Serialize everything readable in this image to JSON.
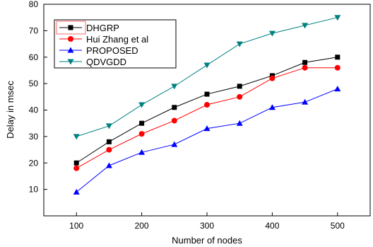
{
  "chart_data": {
    "type": "line",
    "xlabel": "Number of nodes",
    "ylabel": "Delay in msec",
    "xlim": [
      50,
      550
    ],
    "ylim": [
      0,
      80
    ],
    "x": [
      100,
      150,
      200,
      250,
      300,
      350,
      400,
      450,
      500
    ],
    "x_ticks": [
      100,
      200,
      300,
      400,
      500
    ],
    "x_tick_labels": [
      "100",
      "200",
      "300",
      "400",
      "500"
    ],
    "y_ticks": [
      10,
      20,
      30,
      40,
      50,
      60,
      70,
      80
    ],
    "y_tick_labels": [
      "10",
      "20",
      "30",
      "40",
      "50",
      "60",
      "70",
      "80"
    ],
    "grid": false,
    "legend_position": "top-left",
    "series": [
      {
        "name": "DHGRP",
        "color": "#000000",
        "marker": "square",
        "values": [
          20,
          28,
          35,
          41,
          46,
          49,
          53,
          58,
          60
        ]
      },
      {
        "name": "Hui Zhang et al",
        "color": "#ff0000",
        "marker": "circle",
        "values": [
          18,
          25,
          31,
          36,
          42,
          45,
          52,
          56,
          56
        ]
      },
      {
        "name": "PROPOSED",
        "color": "#0000ff",
        "marker": "triangle-up",
        "values": [
          9,
          19,
          24,
          27,
          33,
          35,
          41,
          43,
          48
        ]
      },
      {
        "name": "QDVGDD",
        "color": "#008080",
        "marker": "triangle-down",
        "values": [
          30,
          34,
          42,
          49,
          57,
          65,
          69,
          72,
          75
        ]
      }
    ]
  }
}
